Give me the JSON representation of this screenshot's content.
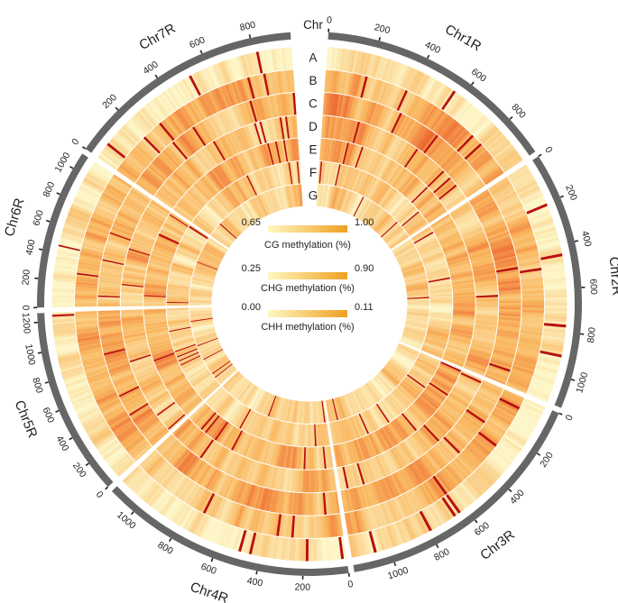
{
  "figure": {
    "track_header": "Chr",
    "tracks": [
      "A",
      "B",
      "C",
      "D",
      "E",
      "F",
      "G"
    ],
    "chromosomes": [
      {
        "name": "Chr1R",
        "ticks": [
          "0",
          "200",
          "400",
          "600",
          "800"
        ]
      },
      {
        "name": "Chr2R",
        "ticks": [
          "0",
          "200",
          "400",
          "600",
          "800",
          "1000"
        ]
      },
      {
        "name": "Chr3R",
        "ticks": [
          "0",
          "200",
          "400",
          "600",
          "800",
          "1000"
        ]
      },
      {
        "name": "Chr4R",
        "ticks": [
          "0",
          "200",
          "400",
          "600",
          "800",
          "1000"
        ]
      },
      {
        "name": "Chr5R",
        "ticks": [
          "0",
          "200",
          "400",
          "600",
          "800",
          "1000",
          "1200"
        ]
      },
      {
        "name": "Chr6R",
        "ticks": [
          "0",
          "200",
          "400",
          "600",
          "800",
          "1000"
        ]
      },
      {
        "name": "Chr7R",
        "ticks": [
          "0",
          "200",
          "400",
          "600",
          "800"
        ]
      }
    ],
    "legend": [
      {
        "title": "CG methylation (%)",
        "min": "0.65",
        "max": "1.00"
      },
      {
        "title": "CHG methylation (%)",
        "min": "0.25",
        "max": "0.90"
      },
      {
        "title": "CHH methylation (%)",
        "min": "0.00",
        "max": "0.11"
      }
    ],
    "colors": {
      "ideogram": "#666666",
      "heat_low": "#fdf6c8",
      "heat_mid": "#f9b65e",
      "heat_high": "#e8451c",
      "heat_max": "#b8100f",
      "legend_low": "#fff8c0",
      "legend_high": "#f0a020"
    }
  }
}
